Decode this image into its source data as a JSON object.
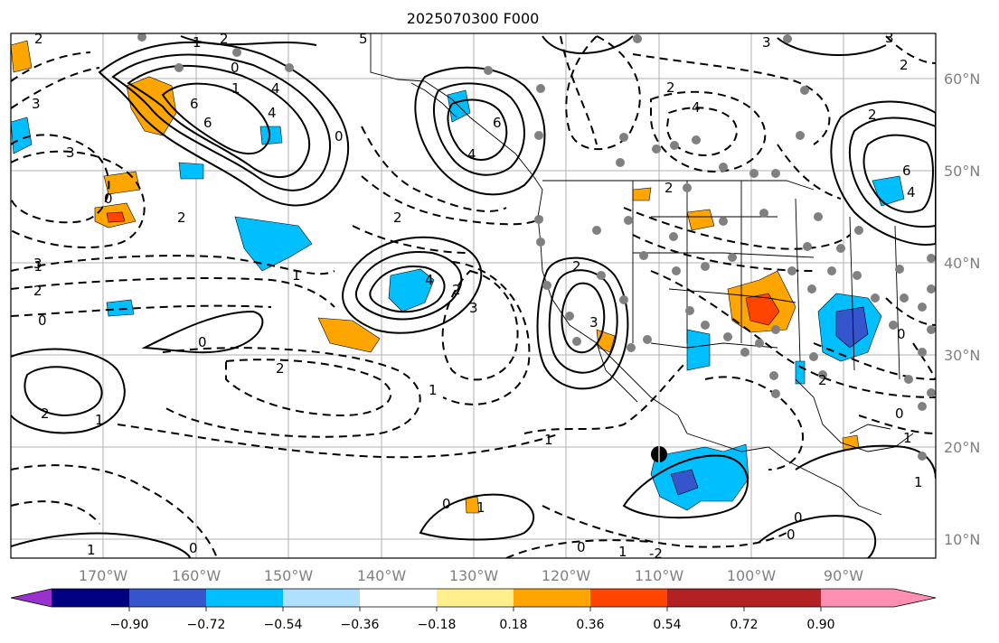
{
  "title": "2025070300 F000",
  "map": {
    "longitude_labels": [
      "170°W",
      "160°W",
      "150°W",
      "140°W",
      "130°W",
      "120°W",
      "110°W",
      "100°W",
      "90°W"
    ],
    "latitude_labels": [
      "60°N",
      "50°N",
      "40°N",
      "30°N",
      "20°N",
      "10°N"
    ],
    "contour_labels": [
      "2",
      "1",
      "3",
      "2",
      "4",
      "6",
      "3",
      "4",
      "6",
      "0",
      "2",
      "1",
      "-1",
      "0",
      "0",
      "5",
      "4",
      "6",
      "2",
      "3",
      "2",
      "4",
      "1",
      "0",
      "3",
      "2",
      "0",
      "2",
      "2",
      "0",
      "1",
      "-2",
      "1",
      "2",
      "3",
      "1",
      "0",
      "4",
      "6",
      "4",
      "0",
      "3",
      "3",
      "2",
      "1",
      "2",
      "2",
      "1",
      "0",
      "1",
      "2",
      "0",
      "2",
      "0",
      "1",
      "0",
      "1",
      "3"
    ],
    "shading_colors": {
      "neg_strong": "#4b4ec8",
      "neg_medium": "#1e90ff",
      "neg_light": "#00bfff",
      "pos_light": "#ffa500",
      "pos_strong": "#ff4500"
    }
  },
  "colorbar": {
    "ticks": [
      "−0.90",
      "−0.72",
      "−0.54",
      "−0.36",
      "−0.18",
      "0.18",
      "0.36",
      "0.54",
      "0.72",
      "0.90"
    ],
    "colors": [
      "#9932cc",
      "#000080",
      "#3655cc",
      "#00bfff",
      "#b0e0ff",
      "#ffffff",
      "#fff08c",
      "#ffa500",
      "#ff4500",
      "#b22222",
      "#ff8fb0"
    ]
  }
}
